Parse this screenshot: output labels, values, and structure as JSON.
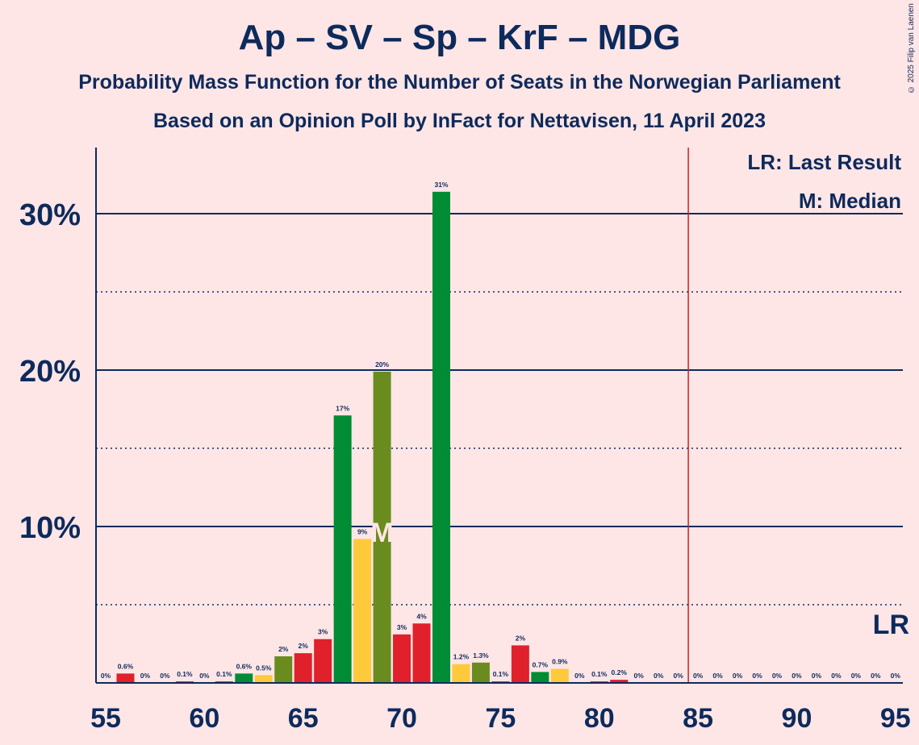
{
  "title": "Ap – SV – Sp – KrF – MDG",
  "subtitle1": "Probability Mass Function for the Number of Seats in the Norwegian Parliament",
  "subtitle2": "Based on an Opinion Poll by InFact for Nettavisen, 11 April 2023",
  "copyright": "© 2025 Filip van Laenen",
  "legend": {
    "lr": "LR: Last Result",
    "m": "M: Median",
    "lr_short": "LR",
    "m_short": "M"
  },
  "colors": {
    "background": "#ffe6e6",
    "axis": "#0d2a5c",
    "last_result_line": "#cc2222",
    "median_marker": "#ffe6e6",
    "bar_colors": [
      "#e0202a",
      "#ffc93c",
      "#008c34",
      "#6a8c1e"
    ]
  },
  "chart_data": {
    "type": "bar",
    "xlabel": "",
    "ylabel": "",
    "x_ticks": [
      55,
      60,
      65,
      70,
      75,
      80,
      85,
      90,
      95
    ],
    "y_ticks": [
      "10%",
      "20%",
      "30%"
    ],
    "ylim": [
      0,
      34
    ],
    "last_result": 85,
    "median": 69,
    "bars": [
      {
        "seats": 55,
        "value": 0.0,
        "label": "0%",
        "party": "red"
      },
      {
        "seats": 56,
        "value": 0.6,
        "label": "0.6%",
        "party": "red"
      },
      {
        "seats": 57,
        "value": 0.0,
        "label": "0%",
        "party": "red"
      },
      {
        "seats": 58,
        "value": 0.0,
        "label": "0%",
        "party": "red"
      },
      {
        "seats": 59,
        "value": 0.1,
        "label": "0.1%",
        "party": "red"
      },
      {
        "seats": 60,
        "value": 0.0,
        "label": "0%",
        "party": "red"
      },
      {
        "seats": 61,
        "value": 0.1,
        "label": "0.1%",
        "party": "red"
      },
      {
        "seats": 62,
        "value": 0.6,
        "label": "0.6%",
        "party": "green"
      },
      {
        "seats": 63,
        "value": 0.5,
        "label": "0.5%",
        "party": "yellow"
      },
      {
        "seats": 64,
        "value": 1.7,
        "label": "2%",
        "party": "olive"
      },
      {
        "seats": 65,
        "value": 1.9,
        "label": "2%",
        "party": "red"
      },
      {
        "seats": 66,
        "value": 2.8,
        "label": "3%",
        "party": "red"
      },
      {
        "seats": 67,
        "value": 17.1,
        "label": "17%",
        "party": "green"
      },
      {
        "seats": 68,
        "value": 9.2,
        "label": "9%",
        "party": "yellow"
      },
      {
        "seats": 69,
        "value": 19.9,
        "label": "20%",
        "party": "olive"
      },
      {
        "seats": 70,
        "value": 3.1,
        "label": "3%",
        "party": "red"
      },
      {
        "seats": 71,
        "value": 3.8,
        "label": "4%",
        "party": "red"
      },
      {
        "seats": 72,
        "value": 31.4,
        "label": "31%",
        "party": "green"
      },
      {
        "seats": 73,
        "value": 1.2,
        "label": "1.2%",
        "party": "yellow"
      },
      {
        "seats": 74,
        "value": 1.3,
        "label": "1.3%",
        "party": "olive"
      },
      {
        "seats": 75,
        "value": 0.1,
        "label": "0.1%",
        "party": "red"
      },
      {
        "seats": 76,
        "value": 2.4,
        "label": "2%",
        "party": "red"
      },
      {
        "seats": 77,
        "value": 0.7,
        "label": "0.7%",
        "party": "green"
      },
      {
        "seats": 78,
        "value": 0.9,
        "label": "0.9%",
        "party": "yellow"
      },
      {
        "seats": 79,
        "value": 0.0,
        "label": "0%",
        "party": "red"
      },
      {
        "seats": 80,
        "value": 0.1,
        "label": "0.1%",
        "party": "red"
      },
      {
        "seats": 81,
        "value": 0.2,
        "label": "0.2%",
        "party": "red"
      },
      {
        "seats": 82,
        "value": 0.0,
        "label": "0%",
        "party": "red"
      },
      {
        "seats": 83,
        "value": 0.0,
        "label": "0%",
        "party": "red"
      },
      {
        "seats": 84,
        "value": 0.0,
        "label": "0%",
        "party": "red"
      },
      {
        "seats": 85,
        "value": 0.0,
        "label": "0%",
        "party": "red"
      },
      {
        "seats": 86,
        "value": 0.0,
        "label": "0%",
        "party": "red"
      },
      {
        "seats": 87,
        "value": 0.0,
        "label": "0%",
        "party": "red"
      },
      {
        "seats": 88,
        "value": 0.0,
        "label": "0%",
        "party": "red"
      },
      {
        "seats": 89,
        "value": 0.0,
        "label": "0%",
        "party": "red"
      },
      {
        "seats": 90,
        "value": 0.0,
        "label": "0%",
        "party": "red"
      },
      {
        "seats": 91,
        "value": 0.0,
        "label": "0%",
        "party": "red"
      },
      {
        "seats": 92,
        "value": 0.0,
        "label": "0%",
        "party": "red"
      },
      {
        "seats": 93,
        "value": 0.0,
        "label": "0%",
        "party": "red"
      },
      {
        "seats": 94,
        "value": 0.0,
        "label": "0%",
        "party": "red"
      },
      {
        "seats": 95,
        "value": 0.0,
        "label": "0%",
        "party": "red"
      }
    ]
  }
}
